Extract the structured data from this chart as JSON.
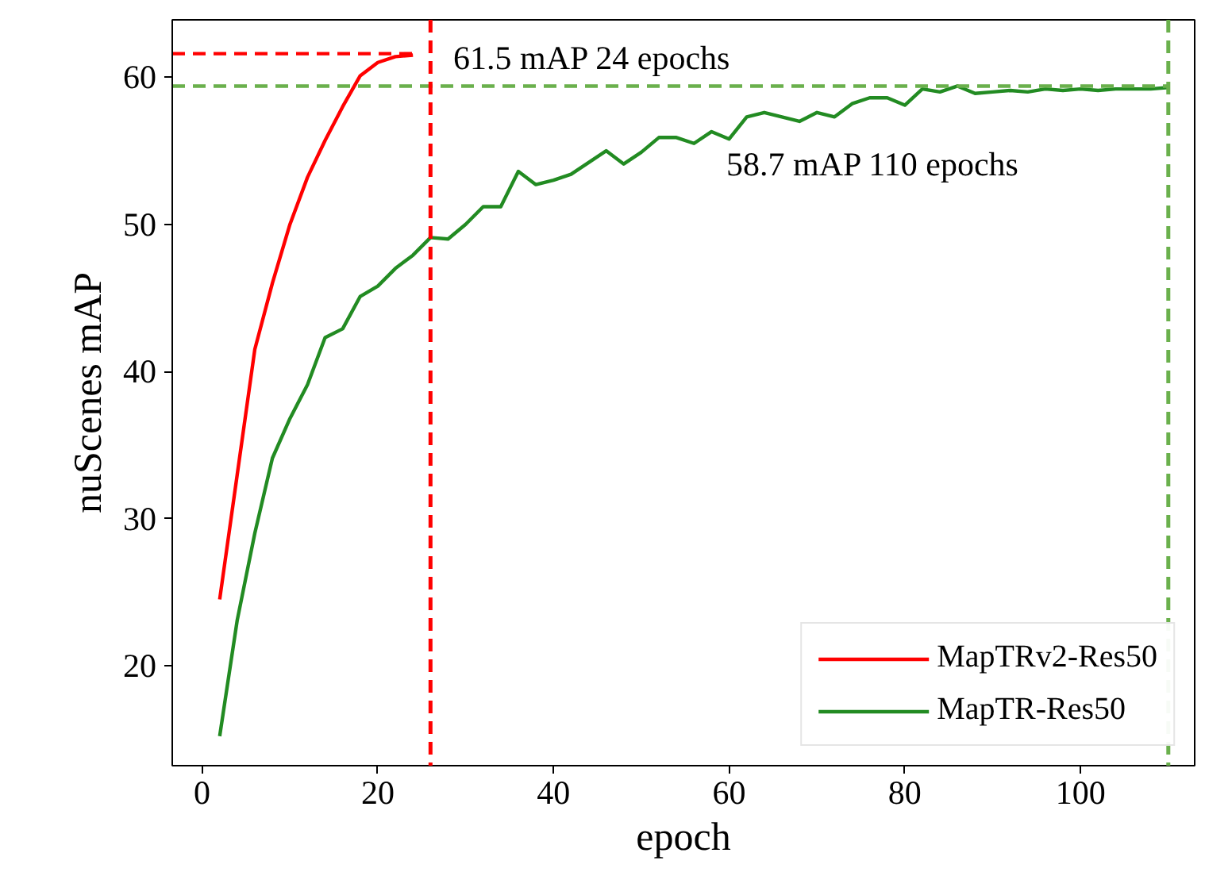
{
  "chart_data": {
    "type": "line",
    "xlabel": "epoch",
    "ylabel": "nuScenes mAP",
    "xlim": [
      -3.4,
      113
    ],
    "ylim": [
      13.2,
      63.9
    ],
    "xticks": [
      0,
      20,
      40,
      60,
      80,
      100
    ],
    "yticks": [
      20,
      30,
      40,
      50,
      60
    ],
    "grid": false,
    "legend": "bottom right",
    "line_style": "solid",
    "marker": "none",
    "series": [
      {
        "name": "MapTRv2-Res50",
        "color": "#ff0000",
        "x": [
          2,
          4,
          6,
          8,
          10,
          12,
          14,
          16,
          18,
          20,
          22,
          24
        ],
        "values": [
          24.5,
          33,
          41.5,
          46,
          50,
          53.2,
          55.7,
          58,
          60.1,
          61,
          61.4,
          61.5
        ]
      },
      {
        "name": "MapTR-Res50",
        "color": "#228b22",
        "x": [
          2,
          4,
          6,
          8,
          10,
          12,
          14,
          16,
          18,
          20,
          22,
          24,
          26,
          28,
          30,
          32,
          34,
          36,
          38,
          40,
          42,
          44,
          46,
          48,
          50,
          52,
          54,
          56,
          58,
          60,
          62,
          64,
          66,
          68,
          70,
          72,
          74,
          76,
          78,
          80,
          82,
          84,
          86,
          88,
          90,
          92,
          94,
          96,
          98,
          100,
          102,
          104,
          106,
          108,
          110
        ],
        "values": [
          15.2,
          23.1,
          29,
          34.1,
          36.8,
          39.1,
          42.3,
          42.9,
          45.1,
          45.8,
          47.0,
          47.9,
          49.1,
          49.0,
          50.0,
          51.2,
          51.2,
          53.6,
          52.7,
          53.0,
          53.4,
          54.2,
          55.0,
          54.1,
          54.9,
          55.9,
          55.9,
          55.5,
          56.3,
          55.8,
          57.3,
          57.6,
          57.3,
          57.0,
          57.6,
          57.3,
          58.2,
          58.6,
          58.6,
          58.1,
          59.2,
          59.0,
          59.4,
          58.9,
          59.0,
          59.1,
          59.0,
          59.2,
          59.1,
          59.2,
          59.1,
          59.2,
          59.2,
          59.2,
          59.3
        ]
      },
      {
        "type": "line",
        "color": "#ff0000",
        "line_style": "dashed",
        "x": [
          -3.4,
          24.5
        ],
        "values": [
          61.6,
          61.6
        ]
      },
      {
        "type": "line",
        "color": "#6ab04c",
        "line_style": "dashed",
        "x": [
          -3.4,
          110
        ],
        "values": [
          59.4,
          59.4
        ]
      }
    ],
    "ref_lines": [
      {
        "axis": "x",
        "value": 26,
        "color": "#ff0000",
        "line_style": "dashed"
      },
      {
        "axis": "x",
        "value": 110,
        "color": "#6ab04c",
        "line_style": "dashed"
      }
    ],
    "annotations": [
      "61.5 mAP  24 epochs",
      "58.7 mAP  110 epochs"
    ]
  }
}
